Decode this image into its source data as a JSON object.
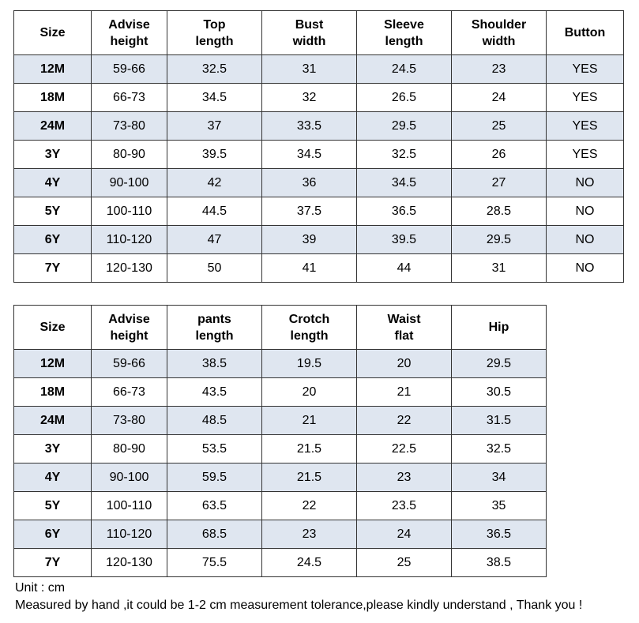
{
  "top_table": {
    "headers": [
      "Size",
      "Advise\nheight",
      "Top\nlength",
      "Bust\nwidth",
      "Sleeve\nlength",
      "Shoulder\nwidth",
      "Button"
    ],
    "rows": [
      [
        "12M",
        "59-66",
        "32.5",
        "31",
        "24.5",
        "23",
        "YES"
      ],
      [
        "18M",
        "66-73",
        "34.5",
        "32",
        "26.5",
        "24",
        "YES"
      ],
      [
        "24M",
        "73-80",
        "37",
        "33.5",
        "29.5",
        "25",
        "YES"
      ],
      [
        "3Y",
        "80-90",
        "39.5",
        "34.5",
        "32.5",
        "26",
        "YES"
      ],
      [
        "4Y",
        "90-100",
        "42",
        "36",
        "34.5",
        "27",
        "NO"
      ],
      [
        "5Y",
        "100-110",
        "44.5",
        "37.5",
        "36.5",
        "28.5",
        "NO"
      ],
      [
        "6Y",
        "110-120",
        "47",
        "39",
        "39.5",
        "29.5",
        "NO"
      ],
      [
        "7Y",
        "120-130",
        "50",
        "41",
        "44",
        "31",
        "NO"
      ]
    ]
  },
  "pants_table": {
    "headers": [
      "Size",
      "Advise\nheight",
      "pants\nlength",
      "Crotch\nlength",
      "Waist\nflat",
      "Hip"
    ],
    "rows": [
      [
        "12M",
        "59-66",
        "38.5",
        "19.5",
        "20",
        "29.5"
      ],
      [
        "18M",
        "66-73",
        "43.5",
        "20",
        "21",
        "30.5"
      ],
      [
        "24M",
        "73-80",
        "48.5",
        "21",
        "22",
        "31.5"
      ],
      [
        "3Y",
        "80-90",
        "53.5",
        "21.5",
        "22.5",
        "32.5"
      ],
      [
        "4Y",
        "90-100",
        "59.5",
        "21.5",
        "23",
        "34"
      ],
      [
        "5Y",
        "100-110",
        "63.5",
        "22",
        "23.5",
        "35"
      ],
      [
        "6Y",
        "110-120",
        "68.5",
        "23",
        "24",
        "36.5"
      ],
      [
        "7Y",
        "120-130",
        "75.5",
        "24.5",
        "25",
        "38.5"
      ]
    ]
  },
  "notes": {
    "unit": "Unit : cm",
    "measurement": "Measured by hand ,it could be 1-2 cm measurement tolerance,please kindly understand , Thank you !"
  },
  "colors": {
    "shaded_row": "#dfe6f0",
    "border": "#333333"
  }
}
